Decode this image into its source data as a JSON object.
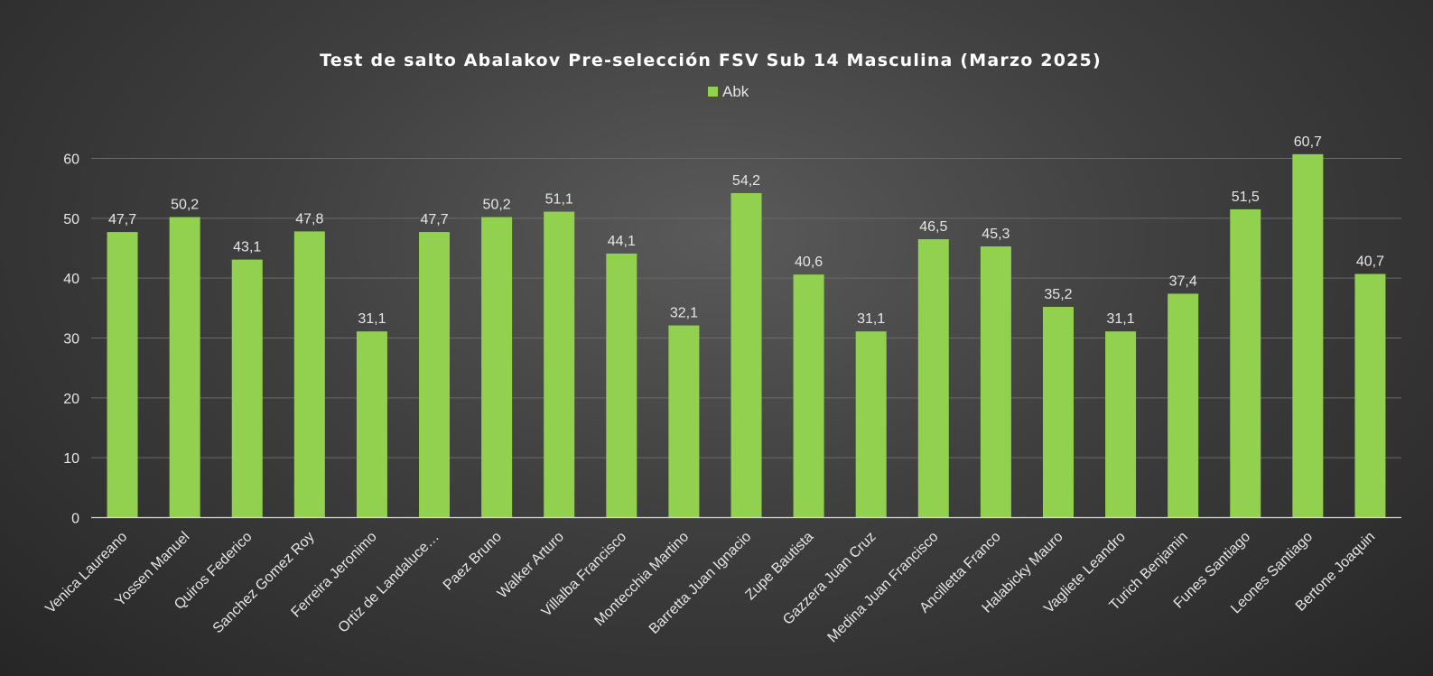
{
  "chart_data": {
    "type": "bar",
    "title": "Test de salto Abalakov Pre-selección FSV Sub 14 Masculina (Marzo 2025)",
    "xlabel": "",
    "ylabel": "",
    "ylim": [
      0,
      60
    ],
    "yticks": [
      0,
      10,
      20,
      30,
      40,
      50,
      60
    ],
    "grid": true,
    "legend_position": "top",
    "categories": [
      "Venica Laureano",
      "Yossen Manuel",
      "Quiros Federico",
      "Sanchez Gomez Roy",
      "Ferreira Jeronimo",
      "Ortiz de Landaluce…",
      "Paez Bruno",
      "Walker Arturo",
      "Villalba Francisco",
      "Montecchia Martino",
      "Barretta Juan Ignacio",
      "Zupe Bautista",
      "Gazzera Juan Cruz",
      "Medina Juan Francisco",
      "Ancilletta Franco",
      "Halabicky Mauro",
      "Vagliete Leandro",
      "Turich Benjamin",
      "Funes Santiago",
      "Leones Santiago",
      "Bertone Joaquin"
    ],
    "series": [
      {
        "name": "Abk",
        "color": "#92d050",
        "values": [
          47.7,
          50.2,
          43.1,
          47.8,
          31.1,
          47.7,
          50.2,
          51.1,
          44.1,
          32.1,
          54.2,
          40.6,
          31.1,
          46.5,
          45.3,
          35.2,
          31.1,
          37.4,
          51.5,
          60.7,
          40.7
        ],
        "labels": [
          "47,7",
          "50,2",
          "43,1",
          "47,8",
          "31,1",
          "47,7",
          "50,2",
          "51,1",
          "44,1",
          "32,1",
          "54,2",
          "40,6",
          "31,1",
          "46,5",
          "45,3",
          "35,2",
          "31,1",
          "37,4",
          "51,5",
          "60,7",
          "40,7"
        ]
      }
    ]
  }
}
